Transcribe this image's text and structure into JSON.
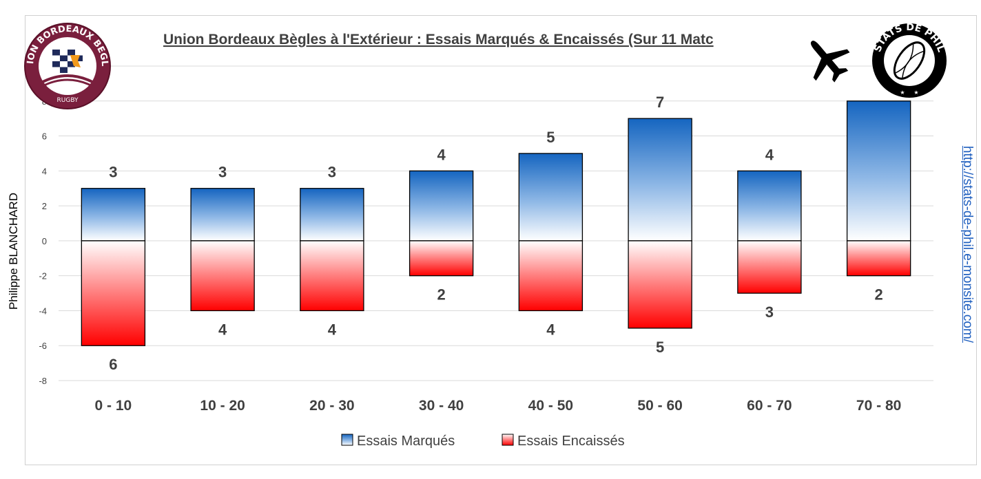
{
  "header": {
    "author": "Philippe BLANCHARD",
    "url": "http://stats-de-phil.e-monsite.com/",
    "club_logo_text": "UNION BORDEAUX BEGLES",
    "club_logo_sub": "RUGBY",
    "badge_text": "STATS DE PHIL",
    "travel_icon": "airplane-icon"
  },
  "colors": {
    "scored_top": "#1565c0",
    "conceded_bottom": "#ff0000",
    "gridline": "#d9d9d9",
    "club_maroon": "#7a1f3d"
  },
  "chart_data": {
    "type": "bar",
    "title": "Union Bordeaux Bègles à l'Extérieur : Essais Marqués & Encaissés (Sur 11 Matc",
    "categories": [
      "0 - 10",
      "10 - 20",
      "20 - 30",
      "30 - 40",
      "40 - 50",
      "50 - 60",
      "60 - 70",
      "70 - 80"
    ],
    "series": [
      {
        "name": "Essais Marqués",
        "values": [
          3,
          3,
          3,
          4,
          5,
          7,
          4,
          8
        ],
        "labels": [
          "3",
          "3",
          "3",
          "4",
          "5",
          "7",
          "4",
          ""
        ]
      },
      {
        "name": "Essais Encaissés",
        "values": [
          -6,
          -4,
          -4,
          -2,
          -4,
          -5,
          -3,
          -2
        ],
        "labels": [
          "6",
          "4",
          "4",
          "2",
          "4",
          "5",
          "3",
          "2"
        ]
      }
    ],
    "yticks": [
      -8,
      -6,
      -4,
      -2,
      0,
      2,
      4,
      6,
      8
    ],
    "ylim": [
      -8,
      10
    ],
    "grid": true,
    "legend": "bottom"
  }
}
